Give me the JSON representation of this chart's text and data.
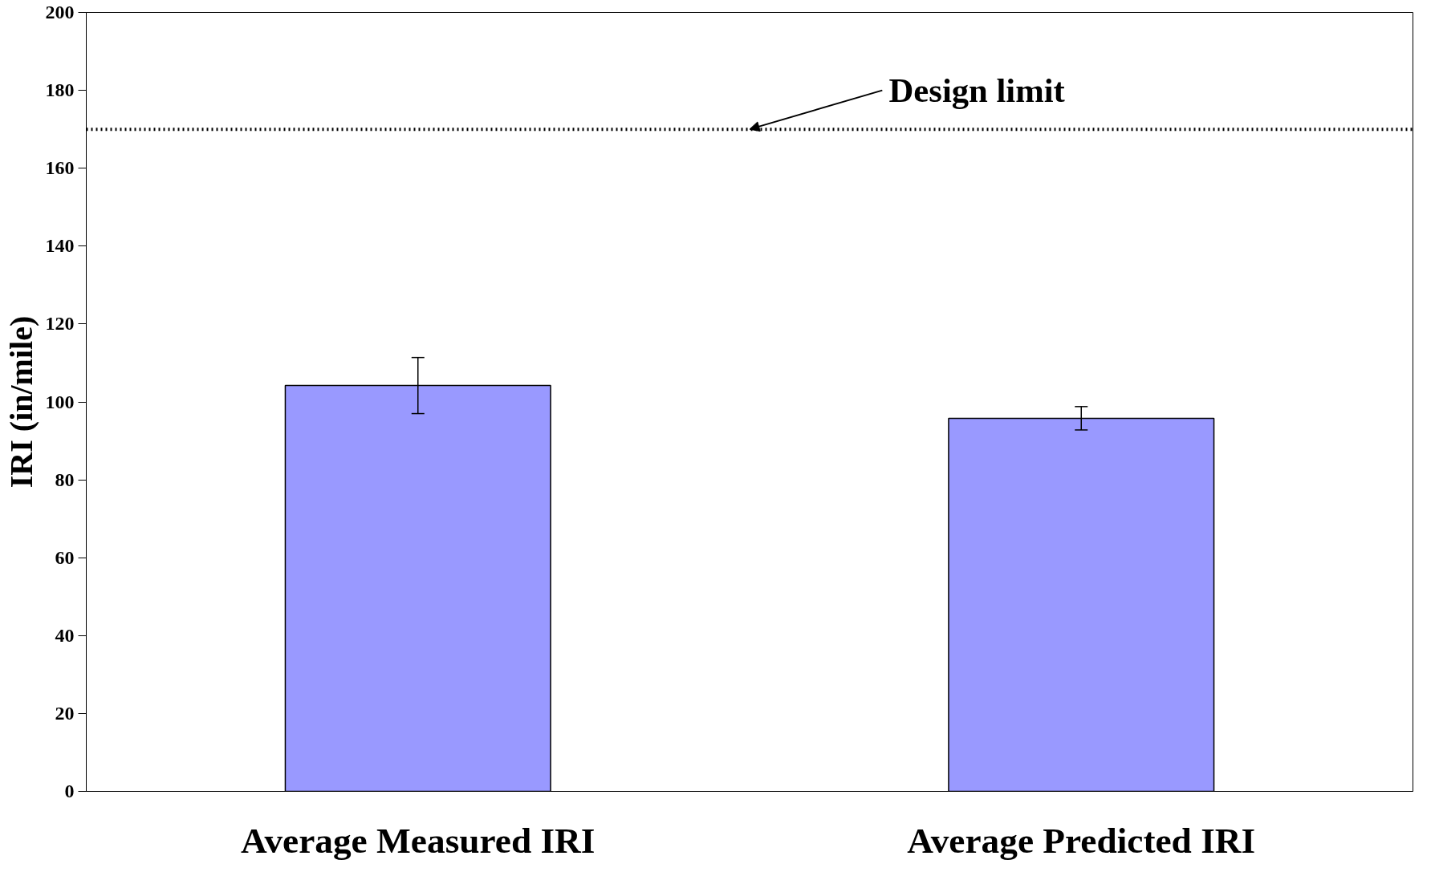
{
  "chart_data": {
    "type": "bar",
    "ylabel": "IRI (in/mile)",
    "categories": [
      "Average Measured IRI",
      "Average Predicted IRI"
    ],
    "values": [
      104.2,
      95.8
    ],
    "errors": [
      7.2,
      3
    ],
    "color": "#9999ff",
    "ylim": [
      0,
      200
    ],
    "yticks": [
      0,
      20,
      40,
      60,
      80,
      100,
      120,
      140,
      160,
      180,
      200
    ],
    "ref_lines": [
      {
        "axis": "y",
        "value": 170,
        "color": "#000000",
        "line_style": "dotted"
      }
    ],
    "annotations": [
      {
        "text": "Design limit",
        "y": 170
      }
    ],
    "grid": false
  }
}
